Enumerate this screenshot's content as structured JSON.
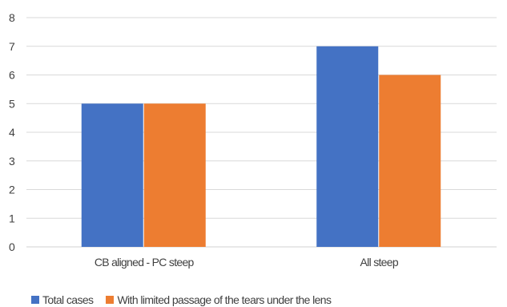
{
  "chart_data": {
    "type": "bar",
    "title": "",
    "xlabel": "",
    "ylabel": "",
    "categories": [
      "CB aligned - PC steep",
      "All steep"
    ],
    "series": [
      {
        "name": "Total cases",
        "values": [
          5,
          7
        ],
        "color": "#4472C4"
      },
      {
        "name": "With limited passage of the tears under the lens",
        "values": [
          5,
          6
        ],
        "color": "#ED7D31"
      }
    ],
    "ylim": [
      0,
      8
    ],
    "yticks": [
      0,
      1,
      2,
      3,
      4,
      5,
      6,
      7,
      8
    ],
    "grid": true,
    "legend_position": "bottom"
  }
}
